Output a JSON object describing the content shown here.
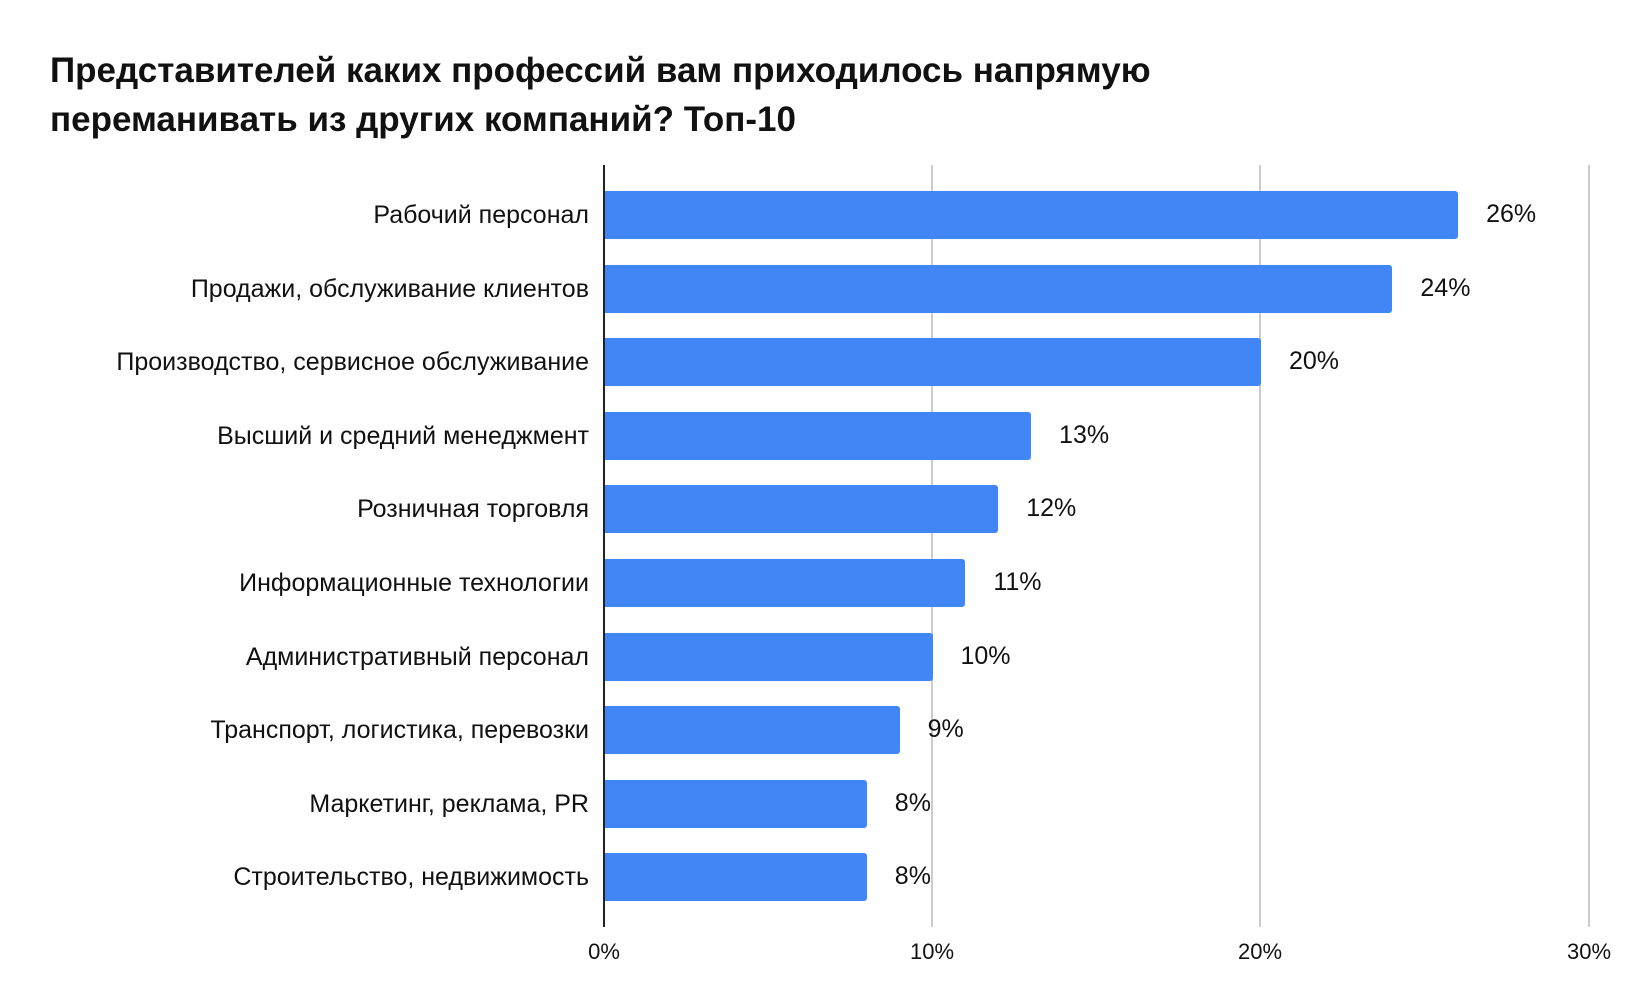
{
  "title": {
    "line1": "Представителей каких профессий вам приходилось напрямую",
    "line2": "переманивать из других компаний? Топ-10"
  },
  "colors": {
    "bar": "#4285f4",
    "grid": "#cccccc",
    "axis": "#222222"
  },
  "axis": {
    "ticks": [
      "0%",
      "10%",
      "20%",
      "30%"
    ]
  },
  "bars": [
    {
      "label": "Рабочий персонал",
      "value": 26,
      "value_label": "26%"
    },
    {
      "label": "Продажи, обслуживание клиентов",
      "value": 24,
      "value_label": "24%"
    },
    {
      "label": "Производство, сервисное обслуживание",
      "value": 20,
      "value_label": "20%"
    },
    {
      "label": "Высший и средний менеджмент",
      "value": 13,
      "value_label": "13%"
    },
    {
      "label": "Розничная торговля",
      "value": 12,
      "value_label": "12%"
    },
    {
      "label": "Информационные технологии",
      "value": 11,
      "value_label": "11%"
    },
    {
      "label": "Административный персонал",
      "value": 10,
      "value_label": "10%"
    },
    {
      "label": "Транспорт, логистика, перевозки",
      "value": 9,
      "value_label": "9%"
    },
    {
      "label": "Маркетинг, реклама, PR",
      "value": 8,
      "value_label": "8%"
    },
    {
      "label": "Строительство, недвижимость",
      "value": 8,
      "value_label": "8%"
    }
  ],
  "chart_data": {
    "type": "bar",
    "orientation": "horizontal",
    "title": "Представителей каких профессий вам приходилось напрямую переманивать из других компаний? Топ-10",
    "categories": [
      "Рабочий персонал",
      "Продажи, обслуживание клиентов",
      "Производство, сервисное обслуживание",
      "Высший и средний менеджмент",
      "Розничная торговля",
      "Информационные технологии",
      "Административный персонал",
      "Транспорт, логистика, перевозки",
      "Маркетинг, реклама, PR",
      "Строительство, недвижимость"
    ],
    "values": [
      26,
      24,
      20,
      13,
      12,
      11,
      10,
      9,
      8,
      8
    ],
    "value_unit": "%",
    "xlabel": "",
    "ylabel": "",
    "xlim": [
      0,
      30
    ],
    "x_ticks": [
      "0%",
      "10%",
      "20%",
      "30%"
    ],
    "grid": true,
    "data_labels": true,
    "legend": null
  }
}
